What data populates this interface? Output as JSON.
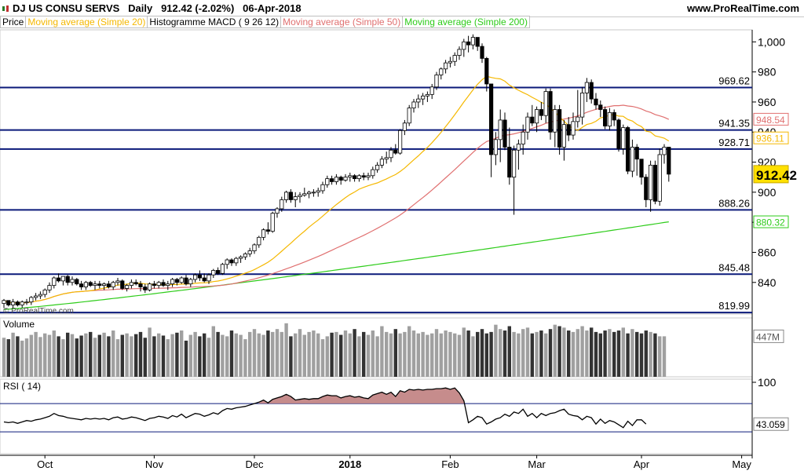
{
  "header": {
    "instrument": "DJ US CONSU SERVS",
    "period": "Daily",
    "last": "912.42 (-2.02%)",
    "date": "06-Apr-2018",
    "site": "www.ProRealTime.com"
  },
  "legend": [
    {
      "label": "Price",
      "color": "#000000"
    },
    {
      "label": "Moving average (Simple 20)",
      "color": "#f5b800"
    },
    {
      "label": "Histogramme MACD ( 9 26 12)",
      "color": "#000000"
    },
    {
      "label": "Moving average (Simple 50)",
      "color": "#e07070"
    },
    {
      "label": "Moving average (Simple 200)",
      "color": "#2ecc1a"
    }
  ],
  "watermark": "© ProRealTime.com",
  "volume_label": "Volume",
  "rsi_label": "RSI ( 14)",
  "chart_data": [
    {
      "type": "candlestick",
      "title": "DJ US CONSU SERVS",
      "ylim": [
        819,
        1008
      ],
      "y_ticks": [
        840,
        860,
        880,
        900,
        920,
        940,
        960,
        980,
        1000
      ],
      "y_tick_labels": [
        "840",
        "860",
        "880",
        "900",
        "920",
        "940",
        "960",
        "980",
        "1,000"
      ],
      "x_ticks": [
        "Oct",
        "Nov",
        "Dec",
        "2018",
        "Feb",
        "Mar",
        "Apr",
        "May"
      ],
      "candles": [
        [
          826,
          829,
          823,
          828
        ],
        [
          828,
          828,
          824,
          825
        ],
        [
          825,
          829,
          823,
          827
        ],
        [
          827,
          828,
          824,
          825
        ],
        [
          825,
          828,
          823,
          827
        ],
        [
          827,
          829,
          825,
          827
        ],
        [
          827,
          831,
          825,
          830
        ],
        [
          830,
          833,
          828,
          831
        ],
        [
          831,
          834,
          829,
          832
        ],
        [
          832,
          836,
          830,
          835
        ],
        [
          835,
          840,
          833,
          838
        ],
        [
          838,
          844,
          836,
          843
        ],
        [
          843,
          846,
          840,
          841
        ],
        [
          841,
          844,
          838,
          844
        ],
        [
          844,
          845,
          838,
          840
        ],
        [
          840,
          844,
          838,
          842
        ],
        [
          842,
          843,
          838,
          839
        ],
        [
          839,
          841,
          835,
          837
        ],
        [
          837,
          841,
          835,
          840
        ],
        [
          840,
          841,
          837,
          838
        ],
        [
          838,
          841,
          835,
          839
        ],
        [
          839,
          841,
          836,
          838
        ],
        [
          838,
          840,
          835,
          839
        ],
        [
          839,
          841,
          836,
          837
        ],
        [
          837,
          841,
          835,
          840
        ],
        [
          840,
          843,
          838,
          841
        ],
        [
          841,
          842,
          835,
          836
        ],
        [
          836,
          839,
          834,
          838
        ],
        [
          838,
          842,
          836,
          840
        ],
        [
          840,
          842,
          838,
          839
        ],
        [
          839,
          841,
          834,
          837
        ],
        [
          837,
          839,
          833,
          835
        ],
        [
          835,
          840,
          834,
          839
        ],
        [
          839,
          841,
          836,
          838
        ],
        [
          838,
          841,
          836,
          840
        ],
        [
          840,
          842,
          837,
          838
        ],
        [
          838,
          841,
          835,
          839
        ],
        [
          839,
          843,
          837,
          842
        ],
        [
          842,
          843,
          838,
          840
        ],
        [
          840,
          844,
          839,
          843
        ],
        [
          843,
          845,
          838,
          839
        ],
        [
          839,
          843,
          837,
          842
        ],
        [
          842,
          846,
          840,
          845
        ],
        [
          845,
          848,
          841,
          843
        ],
        [
          843,
          846,
          840,
          841
        ],
        [
          841,
          846,
          839,
          845
        ],
        [
          845,
          849,
          843,
          848
        ],
        [
          848,
          850,
          845,
          846
        ],
        [
          846,
          853,
          845,
          852
        ],
        [
          852,
          856,
          849,
          855
        ],
        [
          855,
          856,
          851,
          853
        ],
        [
          853,
          857,
          851,
          856
        ],
        [
          856,
          858,
          853,
          857
        ],
        [
          857,
          860,
          855,
          859
        ],
        [
          859,
          863,
          857,
          861
        ],
        [
          861,
          866,
          859,
          865
        ],
        [
          865,
          871,
          863,
          870
        ],
        [
          870,
          876,
          868,
          875
        ],
        [
          875,
          880,
          872,
          874
        ],
        [
          874,
          887,
          873,
          886
        ],
        [
          886,
          890,
          883,
          889
        ],
        [
          889,
          897,
          887,
          895
        ],
        [
          895,
          901,
          893,
          900
        ],
        [
          900,
          902,
          893,
          895
        ],
        [
          895,
          900,
          890,
          897
        ],
        [
          897,
          900,
          893,
          898
        ],
        [
          898,
          903,
          897,
          899
        ],
        [
          899,
          901,
          896,
          900
        ],
        [
          900,
          902,
          897,
          900
        ],
        [
          900,
          903,
          897,
          901
        ],
        [
          901,
          907,
          899,
          905
        ],
        [
          905,
          911,
          903,
          909
        ],
        [
          909,
          911,
          905,
          907
        ],
        [
          907,
          912,
          905,
          910
        ],
        [
          910,
          911,
          905,
          908
        ],
        [
          908,
          912,
          907,
          910
        ],
        [
          910,
          913,
          907,
          911
        ],
        [
          911,
          912,
          907,
          909
        ],
        [
          909,
          912,
          907,
          911
        ],
        [
          911,
          913,
          908,
          910
        ],
        [
          910,
          913,
          908,
          911
        ],
        [
          911,
          917,
          909,
          915
        ],
        [
          915,
          920,
          913,
          918
        ],
        [
          918,
          924,
          916,
          922
        ],
        [
          922,
          927,
          919,
          923
        ],
        [
          923,
          930,
          920,
          928
        ],
        [
          928,
          932,
          925,
          926
        ],
        [
          926,
          942,
          925,
          941
        ],
        [
          941,
          948,
          938,
          946
        ],
        [
          946,
          958,
          944,
          956
        ],
        [
          956,
          962,
          953,
          960
        ],
        [
          960,
          965,
          956,
          962
        ],
        [
          962,
          966,
          958,
          964
        ],
        [
          964,
          967,
          960,
          965
        ],
        [
          965,
          972,
          962,
          970
        ],
        [
          970,
          980,
          968,
          978
        ],
        [
          978,
          983,
          975,
          982
        ],
        [
          982,
          988,
          979,
          986
        ],
        [
          986,
          990,
          983,
          987
        ],
        [
          987,
          993,
          984,
          991
        ],
        [
          991,
          997,
          988,
          995
        ],
        [
          995,
          1002,
          990,
          1000
        ],
        [
          1000,
          1004,
          993,
          998
        ],
        [
          998,
          1005,
          995,
          1003
        ],
        [
          1003,
          1003,
          994,
          997
        ],
        [
          997,
          999,
          986,
          989
        ],
        [
          989,
          990,
          967,
          972
        ],
        [
          972,
          972,
          910,
          925
        ],
        [
          925,
          940,
          918,
          935
        ],
        [
          935,
          955,
          920,
          948
        ],
        [
          948,
          953,
          928,
          930
        ],
        [
          930,
          943,
          905,
          910
        ],
        [
          910,
          931,
          885,
          928
        ],
        [
          928,
          935,
          915,
          932
        ],
        [
          932,
          945,
          925,
          940
        ],
        [
          940,
          953,
          935,
          950
        ],
        [
          950,
          958,
          944,
          946
        ],
        [
          946,
          957,
          940,
          955
        ],
        [
          955,
          960,
          948,
          951
        ],
        [
          951,
          969,
          946,
          967
        ],
        [
          967,
          969,
          935,
          940
        ],
        [
          940,
          958,
          930,
          955
        ],
        [
          955,
          958,
          925,
          930
        ],
        [
          930,
          948,
          921,
          945
        ],
        [
          945,
          950,
          934,
          938
        ],
        [
          938,
          953,
          935,
          947
        ],
        [
          947,
          968,
          943,
          950
        ],
        [
          950,
          970,
          945,
          966
        ],
        [
          966,
          976,
          960,
          973
        ],
        [
          973,
          975,
          959,
          962
        ],
        [
          962,
          966,
          955,
          958
        ],
        [
          958,
          961,
          950,
          955
        ],
        [
          955,
          957,
          942,
          944
        ],
        [
          944,
          956,
          941,
          953
        ],
        [
          953,
          955,
          944,
          948
        ],
        [
          948,
          949,
          927,
          929
        ],
        [
          929,
          945,
          925,
          943
        ],
        [
          943,
          944,
          912,
          914
        ],
        [
          914,
          935,
          910,
          930
        ],
        [
          930,
          932,
          911,
          922
        ],
        [
          922,
          922,
          905,
          910
        ],
        [
          910,
          912,
          890,
          895
        ],
        [
          895,
          921,
          887,
          918
        ],
        [
          918,
          921,
          892,
          894
        ],
        [
          894,
          929,
          891,
          925
        ],
        [
          925,
          932,
          919,
          930
        ],
        [
          930,
          930,
          907,
          912
        ]
      ],
      "hlines": [
        969.62,
        941.35,
        928.71,
        888.26,
        845.48,
        819.99
      ],
      "hline_labels": [
        "969.62",
        "941.35",
        "928.71",
        "888.26",
        "845.48",
        "819.99"
      ],
      "ma_last": {
        "sma20": "936.11",
        "sma50": "948.54",
        "sma200": "880.32"
      },
      "last_price_label": "912.42"
    },
    {
      "type": "bar",
      "title": "Volume",
      "values": [
        540,
        520,
        610,
        560,
        500,
        530,
        580,
        620,
        550,
        600,
        580,
        640,
        560,
        520,
        610,
        590,
        530,
        570,
        600,
        620,
        540,
        580,
        610,
        560,
        640,
        520,
        580,
        600,
        560,
        590,
        620,
        540,
        680,
        560,
        600,
        570,
        520,
        590,
        610,
        640,
        500,
        580,
        620,
        560,
        600,
        540,
        700,
        620,
        580,
        560,
        640,
        600,
        580,
        520,
        620,
        660,
        600,
        580,
        640,
        620,
        660,
        620,
        740,
        560,
        600,
        660,
        580,
        620,
        640,
        600,
        520,
        560,
        610,
        620,
        580,
        640,
        600,
        660,
        560,
        620,
        580,
        640,
        560,
        700,
        620,
        600,
        660,
        600,
        620,
        700,
        640,
        600,
        620,
        580,
        600,
        660,
        600,
        640,
        620,
        600,
        580,
        680,
        640,
        560,
        620,
        660,
        600,
        620,
        720,
        660,
        640,
        700,
        620,
        600,
        660,
        680,
        600,
        620,
        640,
        600,
        660,
        720,
        700,
        680,
        640,
        620,
        660,
        700,
        640,
        680,
        620,
        600,
        640,
        660,
        620,
        640,
        680,
        600,
        660,
        620,
        600,
        640,
        620,
        600,
        560,
        560
      ],
      "last_label": "447M"
    },
    {
      "type": "line",
      "title": "RSI ( 14)",
      "ylim": [
        0,
        100
      ],
      "y_tick_labels": [
        "100"
      ],
      "bands": [
        70,
        30
      ],
      "values": [
        44,
        43,
        44,
        42,
        44,
        46,
        45,
        47,
        48,
        50,
        52,
        56,
        53,
        52,
        50,
        49,
        48,
        47,
        49,
        48,
        49,
        48,
        49,
        47,
        50,
        51,
        48,
        49,
        51,
        50,
        48,
        46,
        49,
        50,
        52,
        51,
        49,
        53,
        51,
        55,
        50,
        53,
        56,
        55,
        52,
        54,
        57,
        55,
        60,
        63,
        62,
        64,
        65,
        66,
        68,
        70,
        72,
        75,
        71,
        76,
        78,
        80,
        83,
        80,
        75,
        76,
        77,
        76,
        77,
        77,
        80,
        82,
        81,
        81,
        78,
        80,
        81,
        79,
        80,
        78,
        77,
        82,
        84,
        86,
        83,
        86,
        80,
        88,
        86,
        90,
        89,
        90,
        89,
        90,
        90,
        91,
        91,
        92,
        90,
        92,
        85,
        74,
        43,
        47,
        52,
        50,
        41,
        44,
        48,
        50,
        55,
        52,
        58,
        56,
        62,
        52,
        56,
        50,
        56,
        53,
        56,
        57,
        60,
        62,
        55,
        53,
        52,
        47,
        52,
        50,
        41,
        48,
        42,
        46,
        44,
        40,
        36,
        45,
        39,
        47,
        47,
        41
      ],
      "last_label": "43.059"
    }
  ]
}
